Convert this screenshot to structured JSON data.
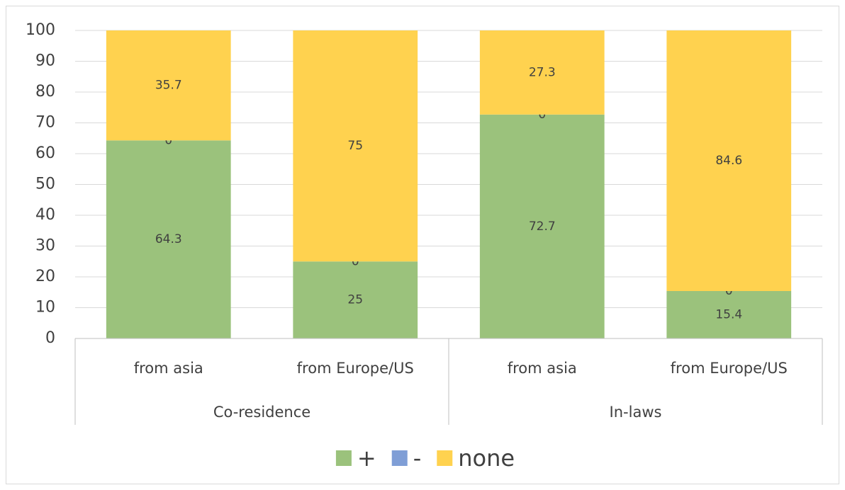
{
  "chart_data": {
    "type": "stacked-bar",
    "groups": [
      {
        "name": "Co-residence",
        "categories": [
          "from asia",
          "from Europe/US"
        ]
      },
      {
        "name": "In-laws",
        "categories": [
          "from asia",
          "from Europe/US"
        ]
      }
    ],
    "series": [
      {
        "name": "+",
        "color": "#9bc27c",
        "values": [
          64.3,
          25,
          72.7,
          15.4
        ]
      },
      {
        "name": "-",
        "color": "#7f9ed6",
        "values": [
          0,
          0,
          0,
          0
        ]
      },
      {
        "name": "none",
        "color": "#ffd24f",
        "values": [
          35.7,
          75,
          27.3,
          84.6
        ]
      }
    ],
    "ylim": [
      0,
      100
    ],
    "yticks": [
      0,
      10,
      20,
      30,
      40,
      50,
      60,
      70,
      80,
      90,
      100
    ],
    "grid": true,
    "legend": "bottom"
  }
}
